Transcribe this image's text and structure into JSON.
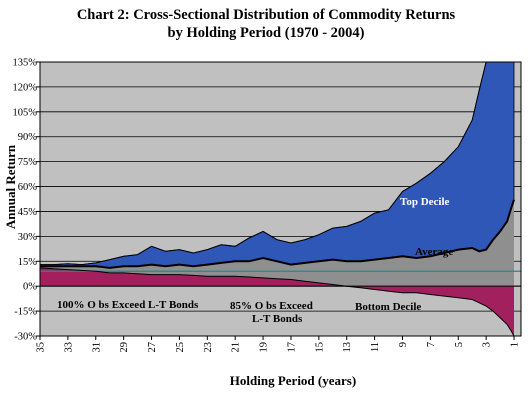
{
  "chart_data": {
    "type": "area",
    "title_line1": "Chart 2: Cross-Sectional Distribution of Commodity Returns",
    "title_line2": "by Holding Period (1970 - 2004)",
    "xlabel": "Holding Period (years)",
    "ylabel": "Annual Return",
    "xlim": [
      35,
      0.5
    ],
    "ylim": [
      -30,
      135
    ],
    "grid": true,
    "y_ticks": [
      "-30%",
      "-15%",
      "0%",
      "15%",
      "30%",
      "45%",
      "60%",
      "75%",
      "90%",
      "105%",
      "120%",
      "135%"
    ],
    "x_ticks": [
      "35",
      "33",
      "31",
      "29",
      "27",
      "25",
      "23",
      "21",
      "19",
      "17",
      "15",
      "13",
      "11",
      "9",
      "7",
      "5",
      "3",
      "1"
    ],
    "reference_line": 9,
    "x": [
      35,
      34,
      33,
      32,
      31,
      30,
      29,
      28,
      27,
      26,
      25,
      24,
      23,
      22,
      21,
      20,
      19,
      18,
      17,
      16,
      15,
      14,
      13,
      12,
      11,
      10,
      9,
      8,
      7,
      6,
      5,
      4,
      3.5,
      3,
      2.5,
      2,
      1.5,
      1.2,
      1
    ],
    "series": [
      {
        "name": "Top Decile",
        "values": [
          13,
          13,
          13.5,
          13,
          14,
          16,
          18,
          19,
          24,
          21,
          22,
          20,
          22,
          25,
          24,
          29,
          33,
          28,
          26,
          28,
          31,
          35,
          36,
          39,
          44,
          46,
          57,
          62,
          68,
          75,
          84,
          100,
          118,
          135,
          135,
          135,
          135,
          135,
          135
        ]
      },
      {
        "name": "Average",
        "values": [
          12,
          12,
          12,
          12,
          12,
          11,
          12,
          12,
          13,
          12,
          13,
          12,
          13,
          14,
          15,
          15,
          17,
          15,
          13,
          14,
          15,
          16,
          15,
          15,
          16,
          17,
          18,
          17,
          18,
          20,
          22,
          23,
          21,
          22,
          28,
          33,
          39,
          47,
          52
        ]
      },
      {
        "name": "Bottom Decile",
        "values": [
          11,
          10.5,
          10,
          9.5,
          9,
          8,
          8,
          7.5,
          7,
          7,
          7,
          6.5,
          6,
          6,
          6,
          5.5,
          5,
          4.5,
          4,
          3,
          2,
          1,
          0,
          -1,
          -2,
          -3,
          -4,
          -4,
          -5,
          -6,
          -7,
          -8,
          -10,
          -12,
          -15,
          -19,
          -23,
          -27,
          -30
        ]
      }
    ],
    "annotations": [
      "Top Decile",
      "Average",
      "Bottom Decile",
      "100% O bs Exceed L-T Bonds",
      "85% O bs Exceed",
      "L-T Bonds"
    ],
    "colors": {
      "top": "#2f57b8",
      "average": "#8f8f8f",
      "bottom": "#a3205f",
      "plot_bg": "#c0c0c0",
      "reference": "#1e8c87"
    }
  }
}
